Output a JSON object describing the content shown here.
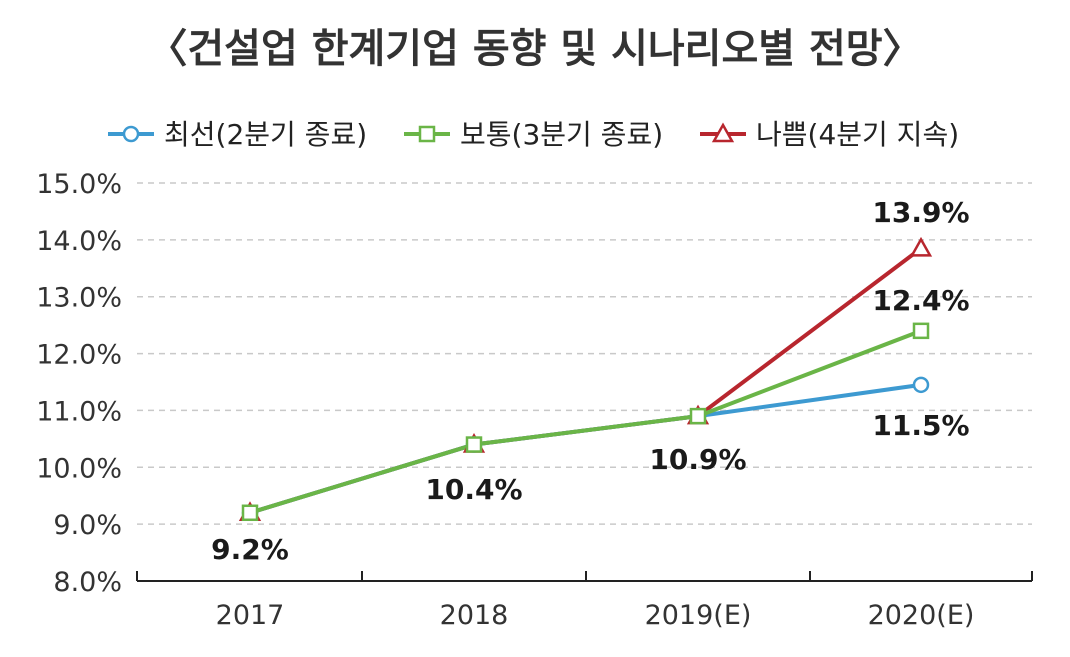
{
  "chart_data": {
    "type": "line",
    "title": "〈건설업 한계기업 동향 및 시나리오별 전망〉",
    "categories": [
      "2017",
      "2018",
      "2019(E)",
      "2020(E)"
    ],
    "ylim": [
      8.0,
      15.0
    ],
    "yticks": [
      "8.0%",
      "9.0%",
      "10.0%",
      "11.0%",
      "12.0%",
      "13.0%",
      "14.0%",
      "15.0%"
    ],
    "grid": true,
    "legend_position": "top",
    "series": [
      {
        "name": "최선(2분기 종료)",
        "values": [
          9.2,
          10.4,
          10.9,
          11.45
        ],
        "color": "#3d9ad1",
        "marker": "circle"
      },
      {
        "name": "보통(3분기 종료)",
        "values": [
          9.2,
          10.4,
          10.9,
          12.4
        ],
        "color": "#6ab547",
        "marker": "square"
      },
      {
        "name": "나쁨(4분기 지속)",
        "values": [
          9.2,
          10.4,
          10.9,
          13.85
        ],
        "color": "#b8262e",
        "marker": "triangle"
      }
    ],
    "data_labels": [
      "9.2%",
      "10.4%",
      "10.9%",
      "11.5%",
      "12.4%",
      "13.9%"
    ]
  }
}
